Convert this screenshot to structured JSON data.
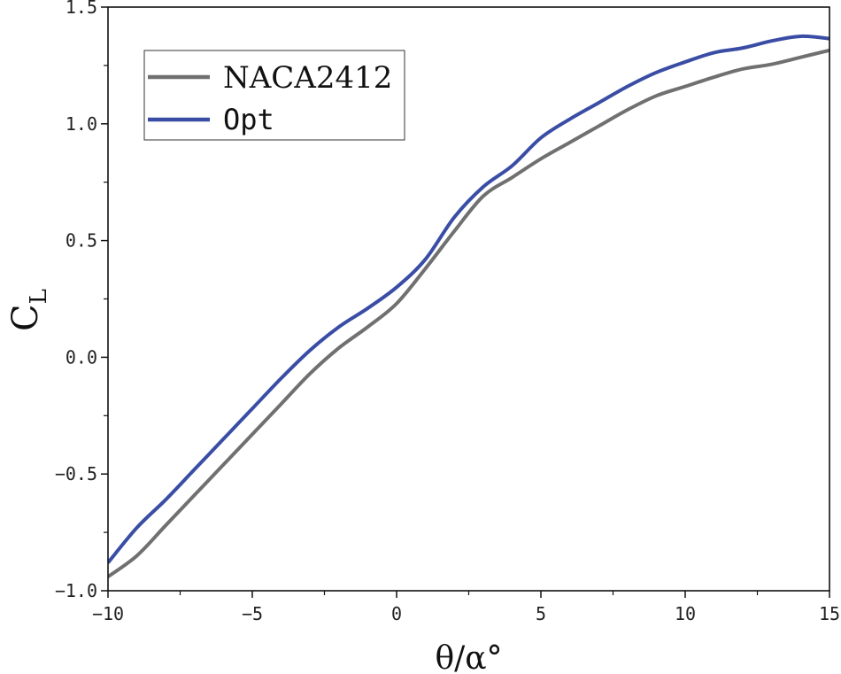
{
  "chart_data": {
    "type": "line",
    "title": "",
    "xlabel": "θ/α°",
    "ylabel": "C",
    "ylabel_subscript": "L",
    "xlim": [
      -10,
      15
    ],
    "ylim": [
      -1.0,
      1.5
    ],
    "xticks": [
      -10,
      -5,
      0,
      5,
      10,
      15
    ],
    "xtick_labels": [
      "−10",
      "−5",
      "0",
      "5",
      "10",
      "15"
    ],
    "yticks": [
      -1.0,
      -0.5,
      0.0,
      0.5,
      1.0,
      1.5
    ],
    "ytick_labels": [
      "−1.0",
      "−0.5",
      "0.0",
      "0.5",
      "1.0",
      "1.5"
    ],
    "legend_position": "top-left",
    "grid": false,
    "series": [
      {
        "name": "NACA2412",
        "color": "#707070",
        "x": [
          -10,
          -9,
          -8,
          -7,
          -6,
          -5,
          -4,
          -3,
          -2,
          -1,
          0,
          1,
          2,
          3,
          4,
          5,
          6,
          7,
          8,
          9,
          10,
          11,
          12,
          13,
          14,
          15
        ],
        "values": [
          -0.94,
          -0.85,
          -0.72,
          -0.59,
          -0.46,
          -0.33,
          -0.2,
          -0.07,
          0.04,
          0.13,
          0.23,
          0.38,
          0.54,
          0.69,
          0.77,
          0.85,
          0.92,
          0.99,
          1.06,
          1.12,
          1.16,
          1.2,
          1.235,
          1.255,
          1.285,
          1.315
        ]
      },
      {
        "name": "Opt",
        "color": "#3a4da5",
        "x": [
          -10,
          -9,
          -8,
          -7,
          -6,
          -5,
          -4,
          -3,
          -2,
          -1,
          0,
          1,
          2,
          3,
          4,
          5,
          6,
          7,
          8,
          9,
          10,
          11,
          12,
          13,
          14,
          15
        ],
        "values": [
          -0.88,
          -0.73,
          -0.61,
          -0.48,
          -0.35,
          -0.22,
          -0.09,
          0.03,
          0.13,
          0.21,
          0.3,
          0.42,
          0.6,
          0.73,
          0.82,
          0.94,
          1.02,
          1.09,
          1.16,
          1.22,
          1.265,
          1.305,
          1.325,
          1.355,
          1.375,
          1.365
        ]
      }
    ]
  }
}
